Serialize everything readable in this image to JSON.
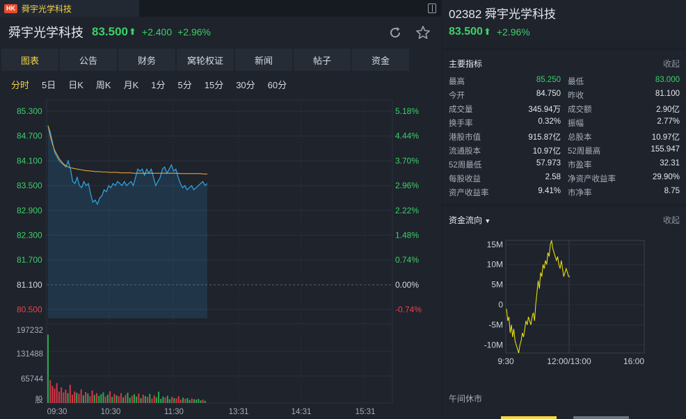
{
  "tab": {
    "badge": "HK",
    "title": "舜宇光学科技"
  },
  "header": {
    "name": "舜宇光学科技",
    "price": "83.500",
    "arrow": "⬆",
    "change": "+2.400",
    "change_pct": "+2.96%"
  },
  "main_tabs": [
    "图表",
    "公告",
    "财务",
    "窝轮权证",
    "新闻",
    "帖子",
    "资金"
  ],
  "period_tabs": [
    "分时",
    "5日",
    "日K",
    "周K",
    "月K",
    "1分",
    "5分",
    "15分",
    "30分",
    "60分"
  ],
  "right_header": {
    "code_name": "02382 舜宇光学科技",
    "price": "83.500",
    "arrow": "⬆",
    "change_pct": "+2.96%"
  },
  "indicators": {
    "title": "主要指标",
    "collapse": "收起",
    "rows": [
      {
        "l": "最高",
        "lv": "85.250",
        "r": "最低",
        "rv": "83.000",
        "lv_green": true,
        "rv_green": true
      },
      {
        "l": "今开",
        "lv": "84.750",
        "r": "昨收",
        "rv": "81.100"
      },
      {
        "l": "成交量",
        "lv": "345.94万",
        "r": "成交额",
        "rv": "2.90亿"
      },
      {
        "l": "换手率",
        "lv": "0.32%",
        "r": "振幅",
        "rv": "2.77%"
      },
      {
        "l": "港股市值",
        "lv": "915.87亿",
        "r": "总股本",
        "rv": "10.97亿"
      },
      {
        "l": "流通股本",
        "lv": "10.97亿",
        "r": "52周最高",
        "rv": "155.947"
      },
      {
        "l": "52周最低",
        "lv": "57.973",
        "r": "市盈率",
        "rv": "32.31"
      },
      {
        "l": "每股收益",
        "lv": "2.58",
        "r": "净资产收益率",
        "rv": "29.90%"
      },
      {
        "l": "资产收益率",
        "lv": "9.41%",
        "r": "市净率",
        "rv": "8.75"
      }
    ]
  },
  "fund_flow": {
    "title": "资金流向",
    "collapse": "收起",
    "note": "午间休市",
    "y_ticks": [
      "15M",
      "10M",
      "5M",
      "0",
      "-5M",
      "-10M"
    ],
    "x_ticks": [
      "9:30",
      "12:00/13:00",
      "16:00"
    ]
  },
  "chart_data": {
    "type": "line",
    "price_axis_left": [
      "85.300",
      "84.700",
      "84.100",
      "83.500",
      "82.900",
      "82.300",
      "81.700",
      "81.100",
      "80.500"
    ],
    "price_axis_right": [
      "5.18%",
      "4.44%",
      "3.70%",
      "2.96%",
      "2.22%",
      "1.48%",
      "0.74%",
      "0.00%",
      "-0.74%"
    ],
    "volume_axis": [
      "197232",
      "131488",
      "65744",
      "股"
    ],
    "time_axis": [
      "09:30",
      "10:30",
      "11:30",
      "13:31",
      "14:31",
      "15:31"
    ],
    "prev_close": 81.1,
    "colors": {
      "price": "#2fa8e8",
      "avg": "#e8a13a",
      "up": "#2fa84f",
      "down": "#d6384a",
      "pos_axis": "#3dd068",
      "neg_axis": "#e8434f"
    },
    "price_series": [
      84.95,
      84.8,
      84.55,
      84.3,
      84.2,
      84.1,
      84.05,
      84.0,
      83.95,
      84.1,
      83.9,
      83.6,
      83.55,
      83.7,
      83.5,
      83.45,
      83.6,
      83.5,
      83.55,
      83.3,
      83.1,
      83.15,
      83.05,
      83.2,
      83.25,
      83.4,
      83.35,
      83.5,
      83.45,
      83.55,
      83.5,
      83.6,
      83.55,
      83.5,
      83.6,
      83.5,
      83.55,
      83.6,
      83.5,
      83.7,
      83.9,
      83.85,
      83.9,
      83.75,
      83.9,
      83.8,
      83.9,
      83.7,
      83.5,
      83.6,
      83.7,
      83.9,
      83.95,
      83.8,
      83.9,
      84.0,
      83.85,
      83.9,
      83.7,
      83.55,
      83.45,
      83.5,
      83.4,
      83.45,
      83.5,
      83.4,
      83.45,
      83.5,
      83.55,
      83.6,
      83.5,
      83.55
    ],
    "avg_series": [
      84.95,
      84.7,
      84.5,
      84.35,
      84.25,
      84.15,
      84.08,
      84.02,
      83.98,
      83.95,
      83.93,
      83.92,
      83.91,
      83.9,
      83.89,
      83.88,
      83.87,
      83.86,
      83.86,
      83.85,
      83.85,
      83.84,
      83.84,
      83.84,
      83.83,
      83.83,
      83.83,
      83.82,
      83.82,
      83.82,
      83.82,
      83.82,
      83.81,
      83.81,
      83.81,
      83.81,
      83.81,
      83.81,
      83.8,
      83.8,
      83.8,
      83.8,
      83.8,
      83.8,
      83.8,
      83.8,
      83.8,
      83.8,
      83.8,
      83.8,
      83.8,
      83.8,
      83.8,
      83.8,
      83.8,
      83.8,
      83.8,
      83.8,
      83.8,
      83.79,
      83.79,
      83.79,
      83.79,
      83.79,
      83.79,
      83.79,
      83.79,
      83.79,
      83.79,
      83.78,
      83.78,
      83.78
    ],
    "volume_max": 197232,
    "volume_series": [
      180000,
      60000,
      45000,
      38000,
      52000,
      30000,
      41000,
      28000,
      35000,
      26000,
      48000,
      22000,
      30000,
      27000,
      24000,
      36000,
      20000,
      29000,
      25000,
      18000,
      33000,
      21000,
      26000,
      19000,
      23000,
      28000,
      17000,
      22000,
      31000,
      16000,
      24000,
      20000,
      18000,
      26000,
      15000,
      21000,
      27000,
      14000,
      19000,
      23000,
      17000,
      25000,
      13000,
      22000,
      18000,
      16000,
      24000,
      12000,
      20000,
      15000,
      30000,
      11000,
      17000,
      14000,
      19000,
      10000,
      16000,
      13000,
      12000,
      18000,
      9000,
      14000,
      11000,
      13000,
      8000,
      12000,
      10000,
      9000,
      11000,
      7000,
      9000,
      6000
    ]
  },
  "flow_chart_data": {
    "type": "line",
    "ylim": [
      -12,
      16
    ],
    "color": "#e6dd12",
    "series": [
      -1,
      -4,
      -3,
      -7,
      -5,
      -8,
      -6,
      -9,
      -10,
      -11,
      -12,
      -10,
      -9,
      -7,
      -8,
      -6,
      -4,
      -5,
      -3,
      -4,
      -5,
      -3,
      -2,
      -4,
      0,
      3,
      6,
      4,
      8,
      7,
      10,
      9,
      11,
      10,
      13,
      12,
      15,
      16,
      14,
      13,
      12,
      11,
      12,
      10,
      9,
      11,
      9,
      7,
      8,
      9,
      8,
      7,
      7
    ]
  }
}
